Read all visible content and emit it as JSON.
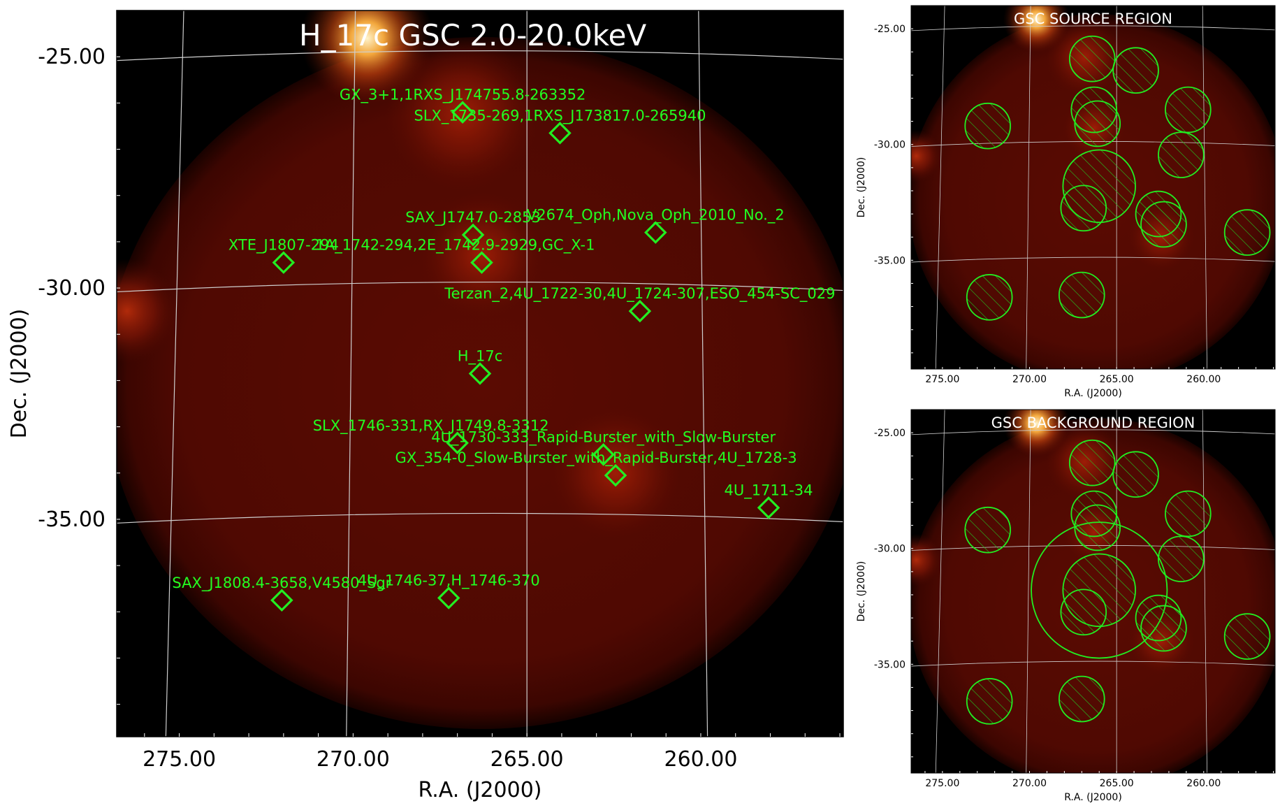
{
  "chart_data": [
    {
      "type": "scatter",
      "title": "H_17c GSC 2.0-20.0keV",
      "xlabel": "R.A. (J2000)",
      "ylabel": "Dec. (J2000)",
      "xlim": [
        276.8,
        255.9
      ],
      "ylim": [
        -39.7,
        -24.0
      ],
      "x_ticks": [
        "275.00",
        "270.00",
        "265.00",
        "260.00"
      ],
      "y_ticks": [
        "-25.00",
        "-30.00",
        "-35.00"
      ],
      "x_tick_values": [
        275,
        270,
        265,
        260
      ],
      "y_tick_values": [
        -25,
        -30,
        -35
      ],
      "grid": true,
      "colors": {
        "marker": "#22ee22",
        "label": "#22ff22",
        "grid": "#c8c8c8"
      },
      "sources": [
        {
          "name": "GX_3+1,1RXS_J174755.8-263352",
          "ra": 266.85,
          "dec": -26.2
        },
        {
          "name": "SLX_1735-269,1RXS_J173817.0-265940",
          "ra": 264.05,
          "dec": -26.65
        },
        {
          "name": "SAX_J1747.0-2853",
          "ra": 266.55,
          "dec": -28.85
        },
        {
          "name": "V2674_Oph,Nova_Oph_2010_No._2",
          "ra": 261.3,
          "dec": -28.8
        },
        {
          "name": "XTE_J1807-294",
          "ra": 272.0,
          "dec": -29.45
        },
        {
          "name": "1A_1742-294,2E_1742.9-2929,GC_X-1",
          "ra": 266.3,
          "dec": -29.45
        },
        {
          "name": "Terzan_2,4U_1722-30,4U_1724-307,ESO_454-SC_029",
          "ra": 261.75,
          "dec": -30.5
        },
        {
          "name": "H_17c",
          "ra": 266.35,
          "dec": -31.85
        },
        {
          "name": "SLX_1746-331,RX_J1749.8-3312",
          "ra": 267.0,
          "dec": -33.35
        },
        {
          "name": "4U_1730-333_Rapid-Burster_with_Slow-Burster",
          "ra": 262.8,
          "dec": -33.6
        },
        {
          "name": "GX_354-0_Slow-Burster_with_Rapid-Burster,4U_1728-3",
          "ra": 262.45,
          "dec": -34.05
        },
        {
          "name": "4U_1711-34",
          "ra": 258.05,
          "dec": -34.75
        },
        {
          "name": "SAX_J1808.4-3658,V4580_Sgr",
          "ra": 272.05,
          "dec": -36.75
        },
        {
          "name": "4U_1746-37,H_1746-370",
          "ra": 267.25,
          "dec": -36.7
        }
      ]
    },
    {
      "type": "scatter",
      "title": "GSC SOURCE REGION",
      "xlabel": "R.A. (J2000)",
      "ylabel": "Dec. (J2000)",
      "x_ticks": [
        "275.00",
        "270.00",
        "265.00",
        "260.00"
      ],
      "y_ticks": [
        "-25.00",
        "-30.00",
        "-35.00"
      ],
      "grid": true,
      "colors": {
        "circle": "#22ee22"
      },
      "regions": [
        {
          "ra": 266.4,
          "dec": -26.3,
          "r_deg": 1.0
        },
        {
          "ra": 263.9,
          "dec": -26.8,
          "r_deg": 1.0
        },
        {
          "ra": 272.4,
          "dec": -29.2,
          "r_deg": 1.0
        },
        {
          "ra": 266.3,
          "dec": -28.5,
          "r_deg": 1.0
        },
        {
          "ra": 266.1,
          "dec": -29.1,
          "r_deg": 1.0
        },
        {
          "ra": 260.9,
          "dec": -28.5,
          "r_deg": 1.0
        },
        {
          "ra": 261.3,
          "dec": -30.45,
          "r_deg": 1.0
        },
        {
          "ra": 266.0,
          "dec": -31.8,
          "r_deg": 1.6
        },
        {
          "ra": 266.9,
          "dec": -32.75,
          "r_deg": 1.0
        },
        {
          "ra": 262.6,
          "dec": -33.0,
          "r_deg": 1.0
        },
        {
          "ra": 262.3,
          "dec": -33.45,
          "r_deg": 1.0
        },
        {
          "ra": 257.5,
          "dec": -33.8,
          "r_deg": 1.0
        },
        {
          "ra": 272.3,
          "dec": -36.6,
          "r_deg": 1.0
        },
        {
          "ra": 267.0,
          "dec": -36.5,
          "r_deg": 1.0
        }
      ]
    },
    {
      "type": "scatter",
      "title": "GSC BACKGROUND REGION",
      "xlabel": "R.A. (J2000)",
      "ylabel": "Dec. (J2000)",
      "x_ticks": [
        "275.00",
        "270.00",
        "265.00",
        "260.00"
      ],
      "y_ticks": [
        "-25.00",
        "-30.00",
        "-35.00"
      ],
      "grid": true,
      "colors": {
        "circle": "#22ee22"
      },
      "regions": [
        {
          "ra": 266.4,
          "dec": -26.3,
          "r_deg": 1.0
        },
        {
          "ra": 263.9,
          "dec": -26.8,
          "r_deg": 1.0
        },
        {
          "ra": 272.4,
          "dec": -29.2,
          "r_deg": 1.0
        },
        {
          "ra": 266.3,
          "dec": -28.5,
          "r_deg": 1.0
        },
        {
          "ra": 266.1,
          "dec": -29.1,
          "r_deg": 1.0
        },
        {
          "ra": 260.9,
          "dec": -28.5,
          "r_deg": 1.0
        },
        {
          "ra": 261.3,
          "dec": -30.45,
          "r_deg": 1.0
        },
        {
          "ra": 266.0,
          "dec": -31.8,
          "r_deg": 1.6
        },
        {
          "ra": 266.0,
          "dec": -31.8,
          "r_deg": 3.0,
          "hatched": false
        },
        {
          "ra": 266.9,
          "dec": -32.75,
          "r_deg": 1.0
        },
        {
          "ra": 262.6,
          "dec": -33.0,
          "r_deg": 1.0
        },
        {
          "ra": 262.3,
          "dec": -33.45,
          "r_deg": 1.0
        },
        {
          "ra": 257.5,
          "dec": -33.8,
          "r_deg": 1.0
        },
        {
          "ra": 272.3,
          "dec": -36.6,
          "r_deg": 1.0
        },
        {
          "ra": 267.0,
          "dec": -36.5,
          "r_deg": 1.0
        }
      ]
    }
  ]
}
